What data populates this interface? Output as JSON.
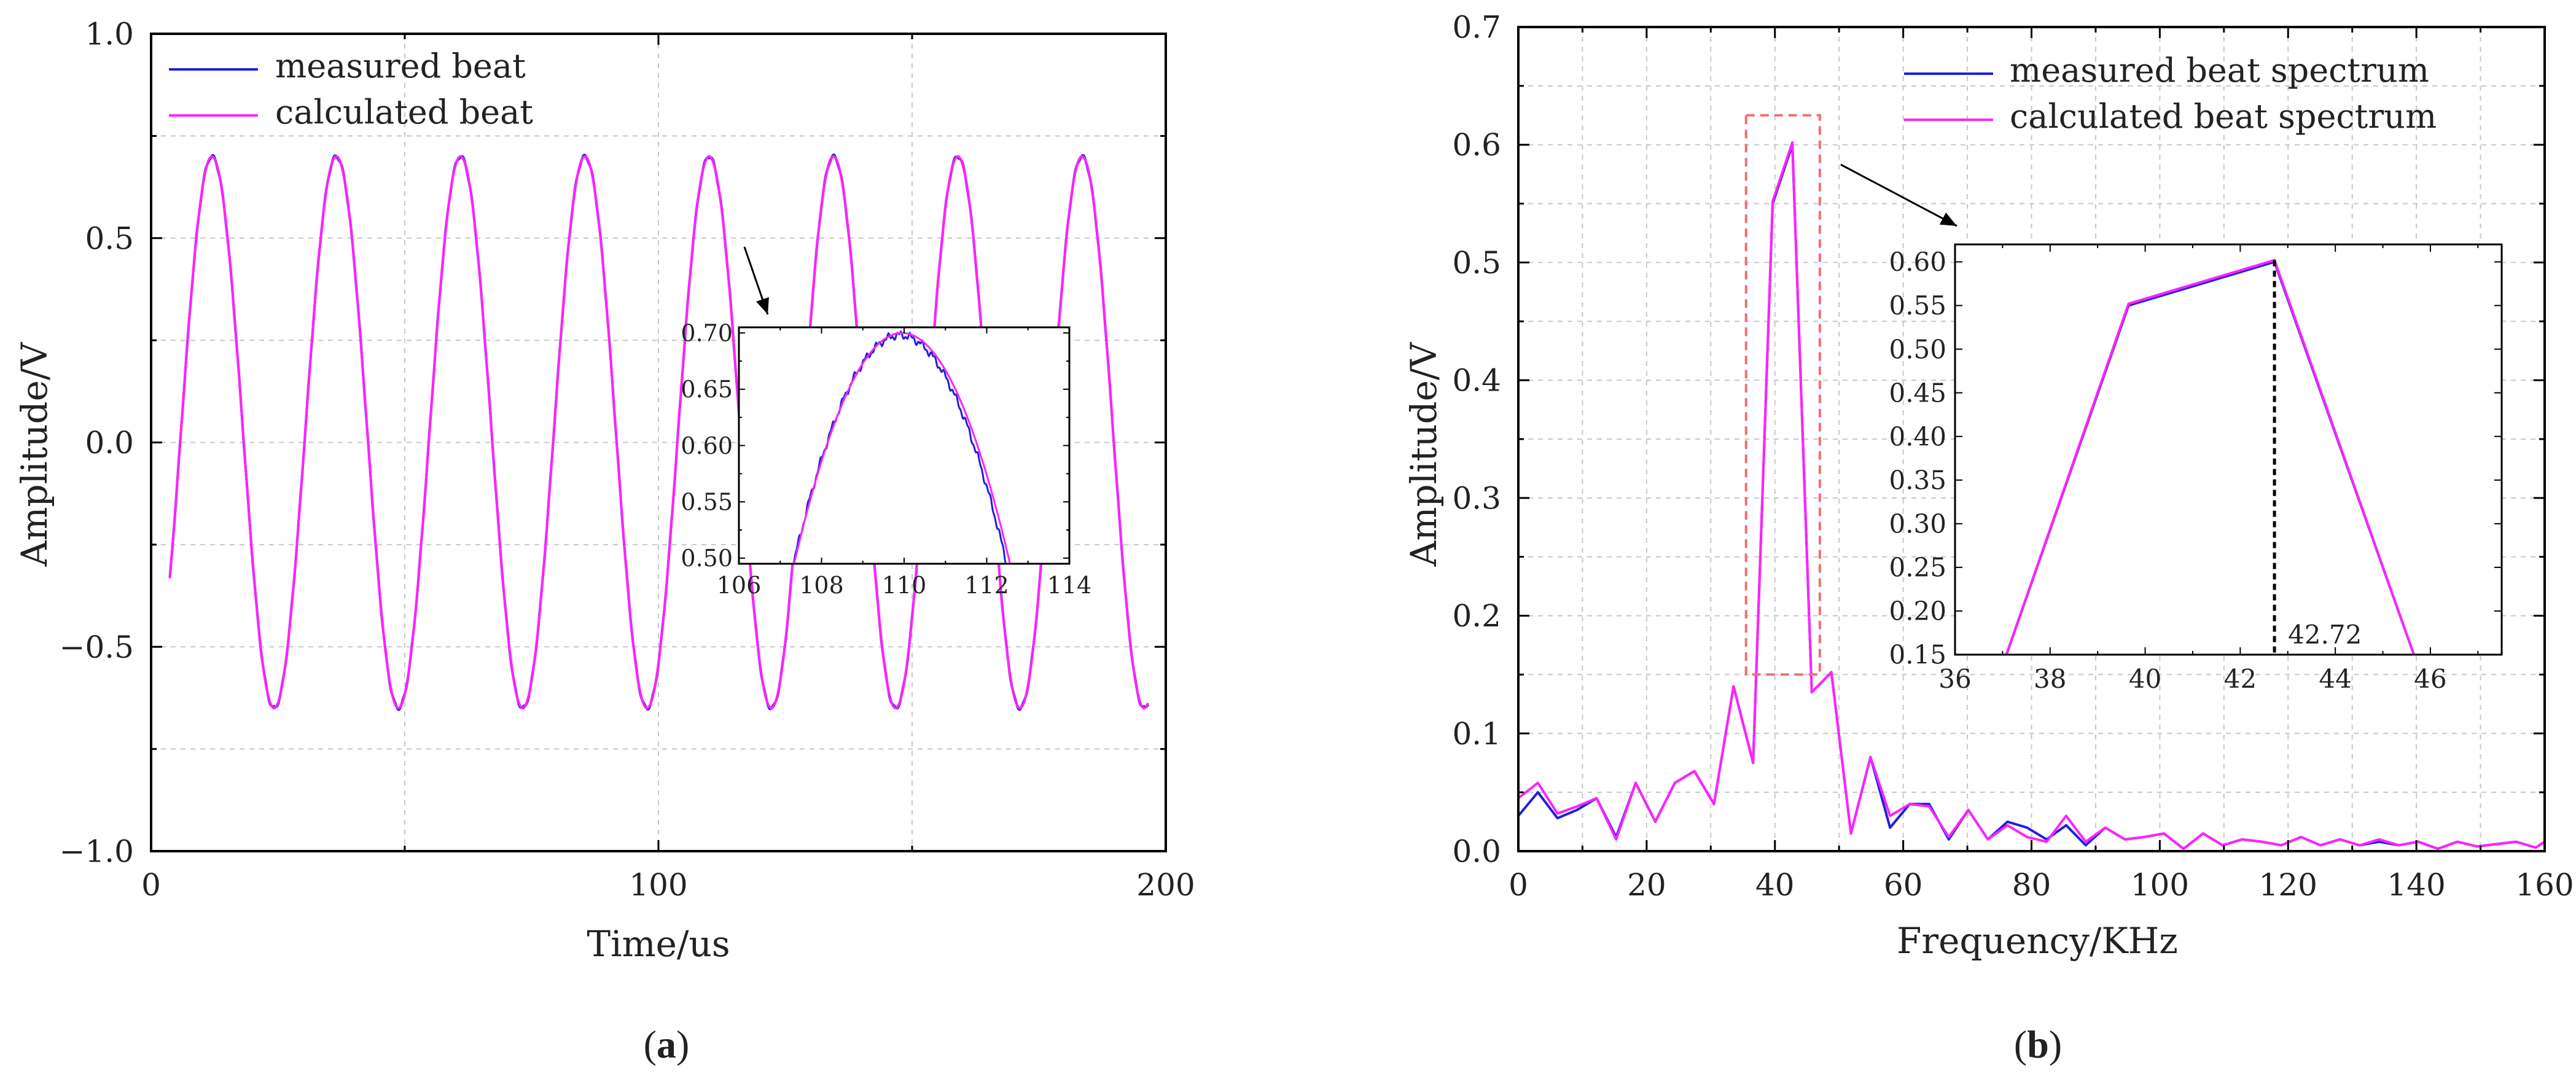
{
  "colors": {
    "measured": "#1f1fdd",
    "calculated": "#ff22ff",
    "highlight_box": "#f07070",
    "grid": "#c8c8c8",
    "marker_line": "#000000"
  },
  "captions": {
    "a": "a",
    "b": "b"
  },
  "chart_data": [
    {
      "id": "a",
      "type": "line",
      "title": "",
      "xlabel": "Time/us",
      "ylabel": "Amplitude/V",
      "xlim": [
        0,
        200
      ],
      "ylim": [
        -1.0,
        1.0
      ],
      "xticks": [
        "0",
        "100",
        "200"
      ],
      "yticks": [
        "−1.0",
        "−0.5",
        "0.0",
        "0.5",
        "1.0"
      ],
      "grid": true,
      "legend_position": "top-left",
      "series": [
        {
          "name": "measured beat",
          "color_key": "measured",
          "model": {
            "type": "sine",
            "amplitude": 0.675,
            "offset": 0.025,
            "period_us": 24.5,
            "peak_time_us": 12.0,
            "x_start": 3.7,
            "x_end": 196.5
          }
        },
        {
          "name": "calculated beat",
          "color_key": "calculated",
          "model": {
            "type": "sine",
            "amplitude": 0.675,
            "offset": 0.025,
            "period_us": 24.5,
            "peak_time_us": 12.0,
            "x_start": 3.7,
            "x_end": 196.5
          }
        }
      ],
      "highlight_region": {
        "x": [
          106,
          114
        ],
        "y": [
          0.49,
          0.71
        ]
      },
      "inset": {
        "xlim": [
          106,
          114
        ],
        "ylim": [
          0.495,
          0.705
        ],
        "xticks": [
          "106",
          "108",
          "110",
          "112",
          "114"
        ],
        "yticks": [
          "0.50",
          "0.55",
          "0.60",
          "0.65",
          "0.70"
        ],
        "series": [
          {
            "name": "measured beat",
            "color_key": "measured",
            "peak_x": 109.9,
            "peak_y": 0.698,
            "curvature": 0.0305
          },
          {
            "name": "calculated beat",
            "color_key": "calculated",
            "peak_x": 109.95,
            "peak_y": 0.7,
            "curvature": 0.03
          }
        ]
      }
    },
    {
      "id": "b",
      "type": "line",
      "title": "",
      "xlabel": "Frequency/KHz",
      "ylabel": "Amplitude/V",
      "xlim": [
        0,
        160
      ],
      "ylim": [
        0,
        0.7
      ],
      "xticks": [
        "0",
        "20",
        "40",
        "60",
        "80",
        "100",
        "120",
        "140",
        "160"
      ],
      "yticks": [
        "0.0",
        "0.1",
        "0.2",
        "0.3",
        "0.4",
        "0.5",
        "0.6",
        "0.7"
      ],
      "grid": true,
      "legend_position": "top-right",
      "series": [
        {
          "name": "measured beat spectrum",
          "color_key": "measured",
          "x": [
            0,
            3.05,
            6.1,
            9.15,
            12.2,
            15.25,
            18.3,
            21.35,
            24.4,
            27.45,
            30.5,
            33.55,
            36.6,
            39.65,
            42.72,
            45.75,
            48.8,
            51.85,
            54.9,
            57.95,
            61.0,
            64.05,
            67.1,
            70.15,
            73.2,
            76.25,
            79.3,
            82.35,
            85.4,
            88.45,
            91.5,
            94.55,
            97.6,
            100.65,
            103.7,
            106.75,
            109.8,
            112.85,
            115.9,
            118.95,
            122.0,
            125.05,
            128.1,
            131.15,
            134.2,
            137.25,
            140.3,
            143.35,
            146.4,
            149.45,
            152.5,
            155.55,
            158.6,
            160
          ],
          "y": [
            0.03,
            0.05,
            0.028,
            0.035,
            0.045,
            0.012,
            0.058,
            0.025,
            0.058,
            0.068,
            0.04,
            0.14,
            0.075,
            0.55,
            0.6,
            0.135,
            0.152,
            0.015,
            0.08,
            0.02,
            0.04,
            0.04,
            0.01,
            0.035,
            0.01,
            0.025,
            0.02,
            0.01,
            0.022,
            0.005,
            0.02,
            0.01,
            0.012,
            0.015,
            0.002,
            0.015,
            0.005,
            0.01,
            0.008,
            0.005,
            0.012,
            0.005,
            0.01,
            0.005,
            0.008,
            0.005,
            0.008,
            0.002,
            0.008,
            0.004,
            0.006,
            0.008,
            0.003,
            0.008
          ]
        },
        {
          "name": "calculated beat spectrum",
          "color_key": "calculated",
          "x": [
            0,
            3.05,
            6.1,
            9.15,
            12.2,
            15.25,
            18.3,
            21.35,
            24.4,
            27.45,
            30.5,
            33.55,
            36.6,
            39.65,
            42.72,
            45.75,
            48.8,
            51.85,
            54.9,
            57.95,
            61.0,
            64.05,
            67.1,
            70.15,
            73.2,
            76.25,
            79.3,
            82.35,
            85.4,
            88.45,
            91.5,
            94.55,
            97.6,
            100.65,
            103.7,
            106.75,
            109.8,
            112.85,
            115.9,
            118.95,
            122.0,
            125.05,
            128.1,
            131.15,
            134.2,
            137.25,
            140.3,
            143.35,
            146.4,
            149.45,
            152.5,
            155.55,
            158.6,
            160
          ],
          "y": [
            0.045,
            0.058,
            0.032,
            0.038,
            0.045,
            0.01,
            0.058,
            0.025,
            0.058,
            0.068,
            0.04,
            0.14,
            0.075,
            0.552,
            0.602,
            0.135,
            0.152,
            0.015,
            0.08,
            0.03,
            0.04,
            0.038,
            0.012,
            0.035,
            0.01,
            0.022,
            0.012,
            0.008,
            0.03,
            0.008,
            0.02,
            0.01,
            0.012,
            0.015,
            0.002,
            0.015,
            0.005,
            0.01,
            0.008,
            0.005,
            0.012,
            0.005,
            0.01,
            0.005,
            0.01,
            0.005,
            0.008,
            0.002,
            0.008,
            0.004,
            0.006,
            0.008,
            0.003,
            0.008
          ]
        }
      ],
      "highlight_region": {
        "x": [
          35.5,
          47
        ],
        "y": [
          0.15,
          0.625
        ]
      },
      "inset": {
        "xlim": [
          36,
          47.5
        ],
        "ylim": [
          0.15,
          0.62
        ],
        "xticks": [
          "36",
          "38",
          "40",
          "42",
          "44",
          "46"
        ],
        "yticks": [
          "0.15",
          "0.20",
          "0.25",
          "0.30",
          "0.35",
          "0.40",
          "0.45",
          "0.50",
          "0.55",
          "0.60"
        ],
        "series": [
          {
            "name": "measured beat spectrum",
            "color_key": "measured",
            "x": [
              36.6,
              39.65,
              42.72,
              45.75
            ],
            "y": [
              0.075,
              0.55,
              0.6,
              0.135
            ]
          },
          {
            "name": "calculated beat spectrum",
            "color_key": "calculated",
            "x": [
              36.6,
              39.65,
              42.72,
              45.75
            ],
            "y": [
              0.075,
              0.552,
              0.602,
              0.135
            ]
          }
        ],
        "marker": {
          "x": 42.72,
          "label": "42.72"
        }
      }
    }
  ]
}
